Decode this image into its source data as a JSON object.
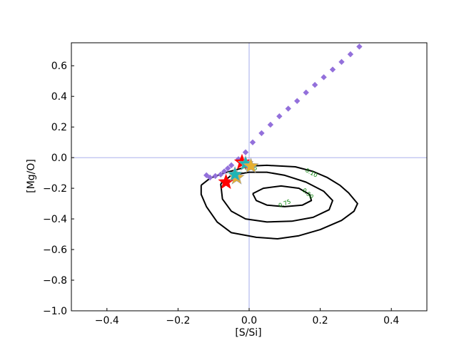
{
  "chart_data": {
    "type": "scatter",
    "xlabel": "[S/Si]",
    "ylabel": "[Mg/O]",
    "xlim": [
      -0.5,
      0.5
    ],
    "ylim": [
      -1.0,
      0.75
    ],
    "x_ticks": [
      -0.4,
      -0.2,
      0.0,
      0.2,
      0.4
    ],
    "x_tick_labels": [
      "−0.4",
      "−0.2",
      "0.0",
      "0.2",
      "0.4"
    ],
    "y_ticks": [
      -1.0,
      -0.8,
      -0.6,
      -0.4,
      -0.2,
      0.0,
      0.2,
      0.4,
      0.6
    ],
    "y_tick_labels": [
      "−1.0",
      "−0.8",
      "−0.6",
      "−0.4",
      "−0.2",
      "0.0",
      "0.2",
      "0.4",
      "0.6"
    ],
    "grid": false,
    "reference_lines": {
      "x": 0.0,
      "y": 0.0,
      "color": "#8c96e6"
    },
    "contours": [
      {
        "level_label": "0.10",
        "color": "#000000",
        "points": [
          [
            -0.135,
            -0.18
          ],
          [
            -0.11,
            -0.135
          ],
          [
            -0.07,
            -0.1
          ],
          [
            -0.03,
            -0.075
          ],
          [
            0.0,
            -0.055
          ],
          [
            0.05,
            -0.05
          ],
          [
            0.13,
            -0.06
          ],
          [
            0.18,
            -0.09
          ],
          [
            0.22,
            -0.13
          ],
          [
            0.255,
            -0.18
          ],
          [
            0.28,
            -0.23
          ],
          [
            0.305,
            -0.3
          ],
          [
            0.295,
            -0.35
          ],
          [
            0.26,
            -0.41
          ],
          [
            0.2,
            -0.47
          ],
          [
            0.14,
            -0.51
          ],
          [
            0.08,
            -0.53
          ],
          [
            0.02,
            -0.52
          ],
          [
            -0.05,
            -0.49
          ],
          [
            -0.09,
            -0.42
          ],
          [
            -0.12,
            -0.32
          ],
          [
            -0.135,
            -0.24
          ],
          [
            -0.135,
            -0.18
          ]
        ]
      },
      {
        "level_label": "0.50",
        "color": "#000000",
        "points": [
          [
            -0.08,
            -0.17
          ],
          [
            -0.05,
            -0.115
          ],
          [
            0.0,
            -0.095
          ],
          [
            0.05,
            -0.095
          ],
          [
            0.1,
            -0.115
          ],
          [
            0.16,
            -0.16
          ],
          [
            0.21,
            -0.22
          ],
          [
            0.235,
            -0.28
          ],
          [
            0.225,
            -0.34
          ],
          [
            0.18,
            -0.39
          ],
          [
            0.12,
            -0.415
          ],
          [
            0.05,
            -0.42
          ],
          [
            -0.01,
            -0.4
          ],
          [
            -0.05,
            -0.35
          ],
          [
            -0.075,
            -0.27
          ],
          [
            -0.08,
            -0.17
          ]
        ]
      },
      {
        "level_label": "0.75",
        "color": "#000000",
        "points": [
          [
            0.01,
            -0.235
          ],
          [
            0.04,
            -0.2
          ],
          [
            0.09,
            -0.185
          ],
          [
            0.14,
            -0.2
          ],
          [
            0.17,
            -0.24
          ],
          [
            0.175,
            -0.28
          ],
          [
            0.15,
            -0.31
          ],
          [
            0.1,
            -0.32
          ],
          [
            0.05,
            -0.31
          ],
          [
            0.02,
            -0.28
          ],
          [
            0.01,
            -0.235
          ]
        ]
      }
    ],
    "contour_labels": [
      {
        "text": "0.10",
        "x": 0.175,
        "y": -0.1,
        "angle": 28
      },
      {
        "text": "0.50",
        "x": 0.165,
        "y": -0.235,
        "angle": 42
      },
      {
        "text": "0.75",
        "x": 0.1,
        "y": -0.3,
        "angle": -22
      },
      {
        "text": "0.75",
        "x": 0.005,
        "y": -0.07,
        "angle": 0
      }
    ],
    "track": {
      "color": "#9370db",
      "x": [
        0.31,
        0.285,
        0.26,
        0.235,
        0.21,
        0.185,
        0.16,
        0.135,
        0.11,
        0.085,
        0.06,
        0.035,
        0.01,
        -0.01,
        -0.03,
        -0.05,
        -0.06,
        -0.07,
        -0.08,
        -0.095,
        -0.11,
        -0.12
      ],
      "y": [
        0.725,
        0.675,
        0.625,
        0.575,
        0.525,
        0.475,
        0.425,
        0.37,
        0.32,
        0.27,
        0.215,
        0.16,
        0.1,
        0.035,
        -0.01,
        -0.05,
        -0.07,
        -0.09,
        -0.11,
        -0.12,
        -0.13,
        -0.115
      ]
    },
    "stars": [
      {
        "x": -0.065,
        "y": -0.16,
        "color": "#ff0000",
        "stroke": "#ff0000"
      },
      {
        "x": -0.02,
        "y": -0.03,
        "color": "#ff0000",
        "stroke": "#ff0000"
      },
      {
        "x": -0.035,
        "y": -0.13,
        "color": "#e6b030",
        "stroke": "#a0a0a0"
      },
      {
        "x": -0.01,
        "y": -0.04,
        "color": "#1fb5b5",
        "stroke": "#a0a0a0"
      },
      {
        "x": -0.04,
        "y": -0.11,
        "color": "#1fb5b5",
        "stroke": "#a0a0a0"
      },
      {
        "x": 0.005,
        "y": -0.055,
        "color": "#e6b030",
        "stroke": "#a0a0a0"
      }
    ]
  }
}
